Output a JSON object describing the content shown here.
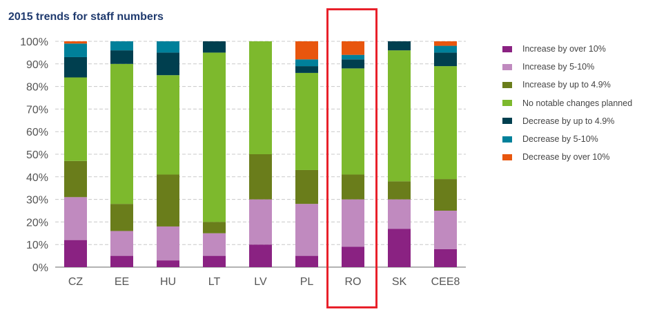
{
  "chart_data": {
    "type": "bar",
    "stacked": true,
    "title": "2015 trends for staff numbers",
    "xlabel": "",
    "ylabel": "",
    "ylim": [
      0,
      100
    ],
    "yticks": [
      "0%",
      "10%",
      "20%",
      "30%",
      "40%",
      "50%",
      "60%",
      "70%",
      "80%",
      "90%",
      "100%"
    ],
    "grid": true,
    "legend_position": "right",
    "categories": [
      "CZ",
      "EE",
      "HU",
      "LT",
      "LV",
      "PL",
      "RO",
      "SK",
      "CEE8"
    ],
    "highlighted_category": "RO",
    "series": [
      {
        "name": "Increase by over 10%",
        "color": "#8a2282",
        "values": [
          12,
          5,
          3,
          5,
          10,
          5,
          9,
          17,
          8
        ]
      },
      {
        "name": "Increase by 5-10%",
        "color": "#c08abf",
        "values": [
          19,
          11,
          15,
          10,
          20,
          23,
          21,
          13,
          17
        ]
      },
      {
        "name": "Increase by up to 4.9%",
        "color": "#6a7d1b",
        "values": [
          16,
          12,
          23,
          5,
          20,
          15,
          11,
          8,
          14
        ]
      },
      {
        "name": "No notable changes planned",
        "color": "#7db92d",
        "values": [
          37,
          62,
          44,
          75,
          50,
          43,
          47,
          58,
          50
        ]
      },
      {
        "name": "Decrease by up to 4.9%",
        "color": "#003f4f",
        "values": [
          9,
          6,
          10,
          5,
          0,
          3,
          4,
          4,
          6
        ]
      },
      {
        "name": "Decrease by 5-10%",
        "color": "#00809a",
        "values": [
          6,
          4,
          5,
          0,
          0,
          3,
          2,
          0,
          3
        ]
      },
      {
        "name": "Decrease by over 10%",
        "color": "#e8560e",
        "values": [
          1,
          0,
          0,
          0,
          0,
          8,
          6,
          0,
          2
        ]
      }
    ]
  }
}
